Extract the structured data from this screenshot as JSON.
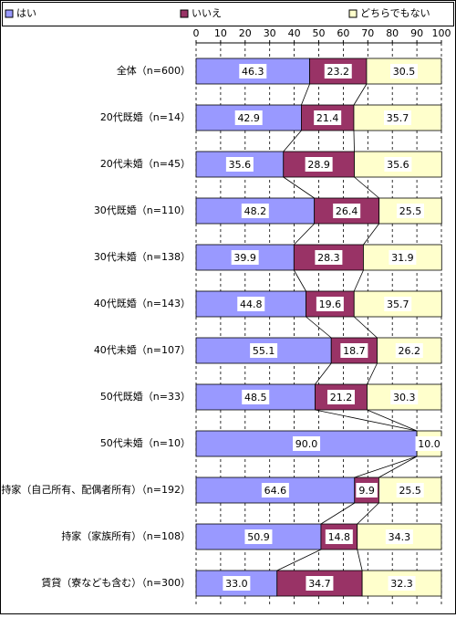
{
  "chart_data": {
    "type": "stacked-bar-horizontal",
    "categories": [
      "全体（n=600）",
      "20代既婚（n=14）",
      "20代未婚（n=45）",
      "30代既婚（n=110）",
      "30代未婚（n=138）",
      "40代既婚（n=143）",
      "40代未婚（n=107）",
      "50代既婚（n=33）",
      "50代未婚（n=10）",
      "持家（自己所有、配偶者所有）（n=192）",
      "持家（家族所有）（n=108）",
      "賃貸（寮なども含む）（n=300）"
    ],
    "series": [
      {
        "name": "はい",
        "color": "#9999ff",
        "values": [
          46.3,
          42.9,
          35.6,
          48.2,
          39.9,
          44.8,
          55.1,
          48.5,
          90,
          64.6,
          50.9,
          33
        ],
        "value_labels": [
          "46.3",
          "42.9",
          "35.6",
          "48.2",
          "39.9",
          "44.8",
          "55.1",
          "48.5",
          "90.0",
          "64.6",
          "50.9",
          "33.0"
        ]
      },
      {
        "name": "いいえ",
        "color": "#993366",
        "values": [
          23.2,
          21.4,
          28.9,
          26.4,
          28.3,
          19.6,
          18.7,
          21.2,
          0,
          9.9,
          14.8,
          34.7
        ],
        "value_labels": [
          "23.2",
          "21.4",
          "28.9",
          "26.4",
          "28.3",
          "19.6",
          "18.7",
          "21.2",
          null,
          "9.9",
          "14.8",
          "34.7"
        ]
      },
      {
        "name": "どちらでもない",
        "color": "#ffffcc",
        "values": [
          30.5,
          35.7,
          35.6,
          25.5,
          31.9,
          35.7,
          26.2,
          30.3,
          10,
          25.5,
          34.3,
          32.3
        ],
        "value_labels": [
          "30.5",
          "35.7",
          "35.6",
          "25.5",
          "31.9",
          "35.7",
          "26.2",
          "30.3",
          "10.0",
          "25.5",
          "34.3",
          "32.3"
        ]
      }
    ],
    "xlim": [
      0,
      100
    ],
    "xticks": [
      0,
      10,
      20,
      30,
      40,
      50,
      60,
      70,
      80,
      90,
      100
    ],
    "grid": true,
    "legend": "top"
  }
}
